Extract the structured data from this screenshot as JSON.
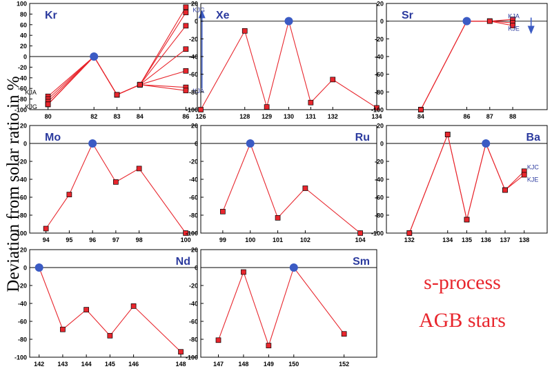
{
  "figure": {
    "ylabel": "Deviation from solar ratio in %",
    "note_line1": "s-process",
    "note_line2": "AGB stars"
  },
  "colors": {
    "line": "#e8262d",
    "marker": "#e8262d",
    "reference": "#3b5bc4",
    "label": "#2b3a9e",
    "axis": "#000000"
  },
  "chart_data": [
    {
      "type": "line",
      "element": "Kr",
      "ylim": [
        -100,
        100
      ],
      "yticks": [
        100,
        80,
        60,
        40,
        20,
        0,
        -20,
        -40,
        -60,
        -80,
        -100
      ],
      "xticks": [
        80,
        82,
        83,
        84,
        86
      ],
      "reference_x": 82,
      "series": [
        {
          "x": [
            80,
            82,
            83,
            84,
            86
          ],
          "y": [
            -75,
            0,
            -72,
            -53,
            93
          ]
        },
        {
          "x": [
            80,
            82,
            83,
            84,
            86
          ],
          "y": [
            -80,
            0,
            -72,
            -53,
            83
          ]
        },
        {
          "x": [
            80,
            82,
            83,
            84,
            86
          ],
          "y": [
            -85,
            0,
            -72,
            -53,
            58
          ]
        },
        {
          "x": [
            80,
            82,
            83,
            84,
            86
          ],
          "y": [
            -90,
            0,
            -72,
            -53,
            14
          ]
        },
        {
          "x": [
            80,
            82,
            83,
            84,
            86
          ],
          "y": [
            -90,
            0,
            -72,
            -53,
            -27
          ]
        },
        {
          "x": [
            80,
            82,
            83,
            84,
            86
          ],
          "y": [
            -90,
            0,
            -72,
            -53,
            -58
          ]
        },
        {
          "x": [
            80,
            82,
            83,
            84,
            86
          ],
          "y": [
            -90,
            0,
            -72,
            -53,
            -64
          ]
        }
      ],
      "annotations": [
        {
          "text": "KJA",
          "x": 79.0,
          "y": -67,
          "color": "#000000"
        },
        {
          "text": "KJG",
          "x": 79.0,
          "y": -94,
          "color": "#000000"
        },
        {
          "text": "KJG",
          "x": 86.3,
          "y": 88,
          "color": "#2b3a9e"
        },
        {
          "text": "KJA",
          "x": 86.3,
          "y": -64,
          "color": "#2b3a9e"
        }
      ],
      "arrow": {
        "x": 86.7,
        "y_from": -60,
        "y_to": 80,
        "direction": "up"
      }
    },
    {
      "type": "line",
      "element": "Xe",
      "ylim": [
        -100,
        20
      ],
      "yticks": [
        20,
        0,
        -20,
        -40,
        -60,
        -80,
        -100
      ],
      "xticks": [
        126,
        128,
        129,
        130,
        131,
        132,
        134
      ],
      "reference_x": 130,
      "series": [
        {
          "x": [
            126,
            128,
            129,
            130,
            131,
            132,
            134
          ],
          "y": [
            -100,
            -11,
            -97,
            0,
            -92,
            -66,
            -98
          ]
        }
      ]
    },
    {
      "type": "line",
      "element": "Sr",
      "ylim": [
        -100,
        20
      ],
      "yticks": [
        20,
        0,
        -20,
        -40,
        -60,
        -80,
        -100
      ],
      "xticks": [
        84,
        86,
        87,
        88
      ],
      "reference_x": 86,
      "series": [
        {
          "x": [
            84,
            86,
            87,
            88
          ],
          "y": [
            -100,
            0,
            0,
            2
          ]
        },
        {
          "x": [
            84,
            86,
            87,
            88
          ],
          "y": [
            -100,
            0,
            0,
            -2
          ]
        },
        {
          "x": [
            84,
            86,
            87,
            88
          ],
          "y": [
            -100,
            0,
            0,
            -5
          ]
        }
      ],
      "annotations": [
        {
          "text": "KJA",
          "x": 87.8,
          "y": 6,
          "color": "#2b3a9e"
        },
        {
          "text": "KJE",
          "x": 87.8,
          "y": -8,
          "color": "#2b3a9e"
        }
      ],
      "arrow": {
        "x": 88.8,
        "y_from": 4,
        "y_to": -10,
        "direction": "down"
      }
    },
    {
      "type": "line",
      "element": "Mo",
      "ylim": [
        -100,
        20
      ],
      "yticks": [
        20,
        0,
        -20,
        -40,
        -60,
        -80,
        -100
      ],
      "xticks": [
        94,
        95,
        96,
        97,
        98,
        100
      ],
      "reference_x": 96,
      "series": [
        {
          "x": [
            94,
            95,
            96,
            97,
            98,
            100
          ],
          "y": [
            -95,
            -57,
            0,
            -43,
            -28,
            -100
          ]
        }
      ]
    },
    {
      "type": "line",
      "element": "Ru",
      "ylim": [
        -100,
        20
      ],
      "yticks": [
        20,
        0,
        -20,
        -40,
        -60,
        -80,
        -100
      ],
      "xticks": [
        99,
        100,
        101,
        102,
        104
      ],
      "reference_x": 100,
      "series": [
        {
          "x": [
            99,
            100,
            101,
            102,
            104
          ],
          "y": [
            -76,
            0,
            -83,
            -50,
            -100
          ]
        }
      ]
    },
    {
      "type": "line",
      "element": "Ba",
      "ylim": [
        -100,
        20
      ],
      "yticks": [
        20,
        0,
        -20,
        -40,
        -60,
        -80,
        -100
      ],
      "xticks": [
        132,
        134,
        135,
        136,
        137,
        138
      ],
      "reference_x": 136,
      "series": [
        {
          "x": [
            132,
            134,
            135,
            136,
            137,
            138
          ],
          "y": [
            -100,
            10,
            -85,
            0,
            -52,
            -31
          ]
        },
        {
          "x": [
            132,
            134,
            135,
            136,
            137,
            138
          ],
          "y": [
            -100,
            10,
            -85,
            0,
            -52,
            -35
          ]
        }
      ],
      "annotations": [
        {
          "text": "KJC",
          "x": 138.15,
          "y": -26,
          "color": "#2b3a9e"
        },
        {
          "text": "KJE",
          "x": 138.15,
          "y": -40,
          "color": "#2b3a9e"
        }
      ]
    },
    {
      "type": "line",
      "element": "Nd",
      "ylim": [
        -100,
        20
      ],
      "yticks": [
        20,
        0,
        -20,
        -40,
        -60,
        -80,
        -100
      ],
      "xticks": [
        142,
        143,
        144,
        145,
        146,
        148
      ],
      "reference_x": 142,
      "series": [
        {
          "x": [
            142,
            143,
            144,
            145,
            146,
            148
          ],
          "y": [
            0,
            -69,
            -47,
            -76,
            -43,
            -94
          ]
        }
      ]
    },
    {
      "type": "line",
      "element": "Sm",
      "ylim": [
        -100,
        20
      ],
      "yticks": [
        20,
        0,
        -20,
        -40,
        -60,
        -80,
        -100
      ],
      "xticks": [
        147,
        148,
        149,
        150,
        152
      ],
      "reference_x": 150,
      "series": [
        {
          "x": [
            147,
            148,
            149,
            150,
            152
          ],
          "y": [
            -81,
            -5,
            -87,
            0,
            -74
          ]
        }
      ]
    }
  ]
}
